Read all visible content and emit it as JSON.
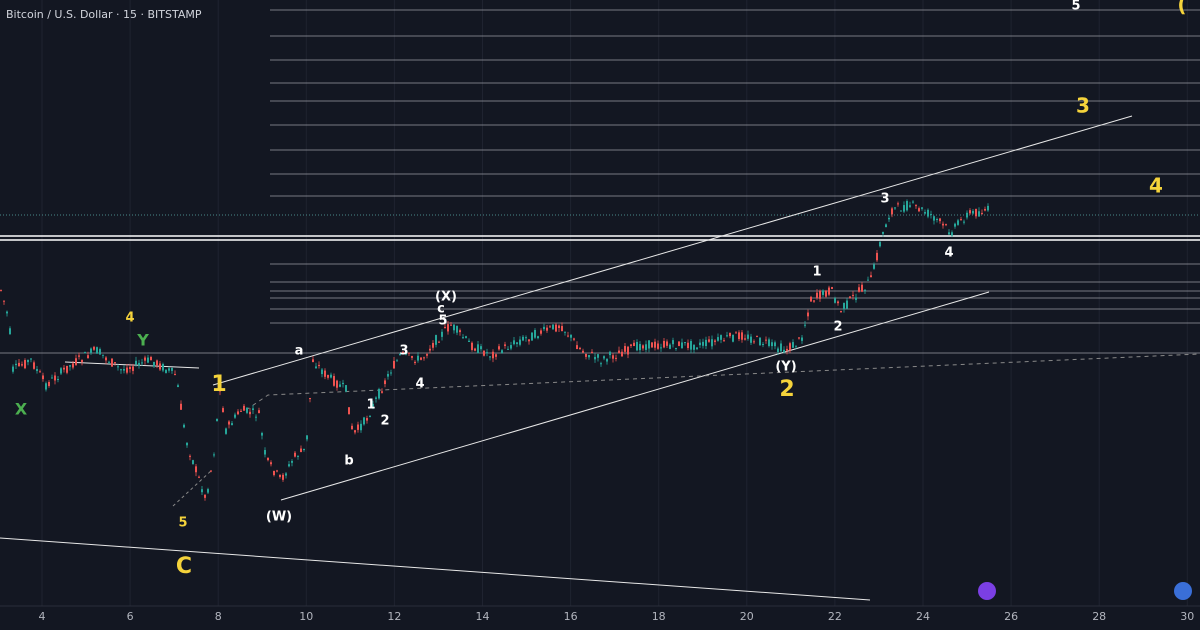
{
  "header": {
    "title": "Bitcoin / U.S. Dollar · 15 · BITSTAMP"
  },
  "xaxis": {
    "labels": [
      "4",
      "6",
      "8",
      "10",
      "12",
      "14",
      "16",
      "18",
      "20",
      "22",
      "24",
      "26",
      "28",
      "30"
    ]
  },
  "annotations": [
    {
      "text": "5",
      "color": "#ffffff"
    },
    {
      "text": "(",
      "color": "#f5d33b"
    },
    {
      "text": "3",
      "color": "#f5d33b"
    },
    {
      "text": "4",
      "color": "#f5d33b"
    },
    {
      "text": "3",
      "color": "#ffffff"
    },
    {
      "text": "4",
      "color": "#ffffff"
    },
    {
      "text": "1",
      "color": "#ffffff"
    },
    {
      "text": "2",
      "color": "#ffffff"
    },
    {
      "text": "(Y)",
      "color": "#ffffff"
    },
    {
      "text": "2",
      "color": "#f5d33b"
    },
    {
      "text": "(X)",
      "color": "#ffffff"
    },
    {
      "text": "c",
      "color": "#ffffff"
    },
    {
      "text": "5",
      "color": "#ffffff"
    },
    {
      "text": "3",
      "color": "#ffffff"
    },
    {
      "text": "4",
      "color": "#ffffff"
    },
    {
      "text": "1",
      "color": "#ffffff"
    },
    {
      "text": "2",
      "color": "#ffffff"
    },
    {
      "text": "b",
      "color": "#ffffff"
    },
    {
      "text": "a",
      "color": "#ffffff"
    },
    {
      "text": "(W)",
      "color": "#ffffff"
    },
    {
      "text": "1",
      "color": "#f5d33b"
    },
    {
      "text": "4",
      "color": "#f5d33b"
    },
    {
      "text": "Y",
      "color": "#4caf50"
    },
    {
      "text": "X",
      "color": "#4caf50"
    },
    {
      "text": "5",
      "color": "#f5d33b"
    },
    {
      "text": "C",
      "color": "#f5d33b"
    }
  ]
}
